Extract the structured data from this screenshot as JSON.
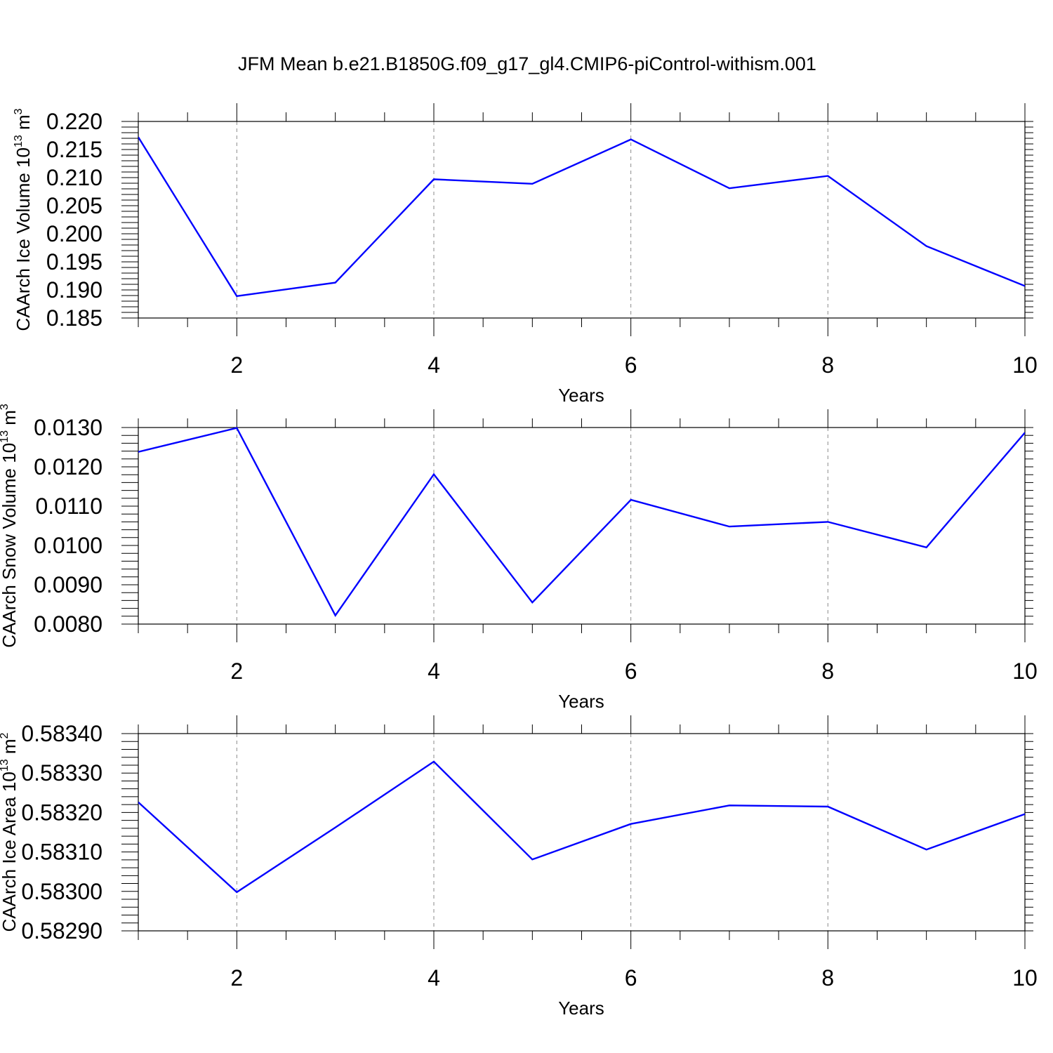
{
  "title": "JFM Mean b.e21.B1850G.f09_g17_gl4.CMIP6-piControl-withism.001",
  "line_color": "#0000ff",
  "grid_color": "#8a8a8a",
  "chart_data": [
    {
      "type": "line",
      "title": "JFM Mean b.e21.B1850G.f09_g17_gl4.CMIP6-piControl-withism.001",
      "xlabel": "Years",
      "ylabel": {
        "text": "CAArch Ice Volume 10",
        "sup": "13",
        "unit": " m",
        "unit_sup": "3"
      },
      "xlim": [
        1,
        10
      ],
      "ylim": [
        0.185,
        0.22
      ],
      "x_ticks": [
        2,
        4,
        6,
        8,
        10
      ],
      "x_tick_labels": [
        "2",
        "4",
        "6",
        "8",
        "10"
      ],
      "y_ticks": [
        0.185,
        0.19,
        0.195,
        0.2,
        0.205,
        0.21,
        0.215,
        0.22
      ],
      "y_tick_labels": [
        "0.185",
        "0.190",
        "0.195",
        "0.200",
        "0.205",
        "0.210",
        "0.215",
        "0.220"
      ],
      "grid": "vertical dashed at major x ticks",
      "x": [
        1,
        2,
        3,
        4,
        5,
        6,
        7,
        8,
        9,
        10
      ],
      "y": [
        0.2172,
        0.1889,
        0.1913,
        0.2097,
        0.2089,
        0.2168,
        0.2081,
        0.2103,
        0.1978,
        0.1907
      ]
    },
    {
      "type": "line",
      "xlabel": "Years",
      "ylabel": {
        "text": "CAArch Snow Volume 10",
        "sup": "13",
        "unit": " m",
        "unit_sup": "3"
      },
      "xlim": [
        1,
        10
      ],
      "ylim": [
        0.008,
        0.013
      ],
      "x_ticks": [
        2,
        4,
        6,
        8,
        10
      ],
      "x_tick_labels": [
        "2",
        "4",
        "6",
        "8",
        "10"
      ],
      "y_ticks": [
        0.008,
        0.009,
        0.01,
        0.011,
        0.012,
        0.013
      ],
      "y_tick_labels": [
        "0.0080",
        "0.0090",
        "0.0100",
        "0.0110",
        "0.0120",
        "0.0130"
      ],
      "grid": "vertical dashed at major x ticks",
      "x": [
        1,
        2,
        3,
        4,
        5,
        6,
        7,
        8,
        9,
        10
      ],
      "y": [
        0.01238,
        0.01299,
        0.00822,
        0.01181,
        0.00855,
        0.01116,
        0.01048,
        0.0106,
        0.00995,
        0.01287
      ]
    },
    {
      "type": "line",
      "xlabel": "Years",
      "ylabel": {
        "text": "CAArch Ice Area 10",
        "sup": "13",
        "unit": " m",
        "unit_sup": "2"
      },
      "xlim": [
        1,
        10
      ],
      "ylim": [
        0.5829,
        0.5834
      ],
      "x_ticks": [
        2,
        4,
        6,
        8,
        10
      ],
      "x_tick_labels": [
        "2",
        "4",
        "6",
        "8",
        "10"
      ],
      "y_ticks": [
        0.5829,
        0.583,
        0.5831,
        0.5832,
        0.5833,
        0.5834
      ],
      "y_tick_labels": [
        "0.58290",
        "0.58300",
        "0.58310",
        "0.58320",
        "0.58330",
        "0.58340"
      ],
      "grid": "vertical dashed at major x ticks",
      "x": [
        1,
        2,
        3,
        4,
        5,
        6,
        7,
        8,
        9,
        10
      ],
      "y": [
        0.583226,
        0.582998,
        0.583162,
        0.583329,
        0.583081,
        0.583171,
        0.583218,
        0.583215,
        0.583106,
        0.583196
      ]
    }
  ]
}
